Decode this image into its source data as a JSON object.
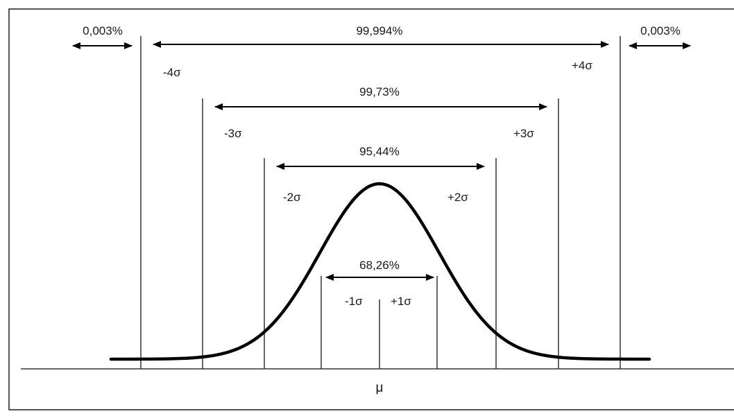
{
  "diagram": {
    "tails": {
      "left_pct": "0,003%",
      "right_pct": "0,003%"
    },
    "intervals": [
      {
        "pct": "99,994%",
        "low_label": "-4σ",
        "high_label": "+4σ"
      },
      {
        "pct": "99,73%",
        "low_label": "-3σ",
        "high_label": "+3σ"
      },
      {
        "pct": "95,44%",
        "low_label": "-2σ",
        "high_label": "+2σ"
      },
      {
        "pct": "68,26%",
        "low_label": "-1σ",
        "high_label": "+1σ"
      }
    ],
    "mean_label": "μ"
  },
  "colors": {
    "curve": "#000000",
    "lines": "#333333",
    "frame": "#555555"
  }
}
